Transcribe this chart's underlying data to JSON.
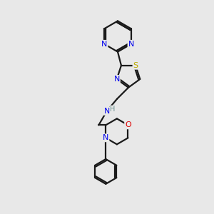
{
  "bg_color": "#e8e8e8",
  "atom_colors": {
    "C": "#1a1a1a",
    "N": "#0000ee",
    "S": "#bbaa00",
    "O": "#dd0000",
    "H": "#6a9090"
  },
  "bond_color": "#1a1a1a",
  "bond_width": 1.6,
  "font_size_atom": 8,
  "title": ""
}
